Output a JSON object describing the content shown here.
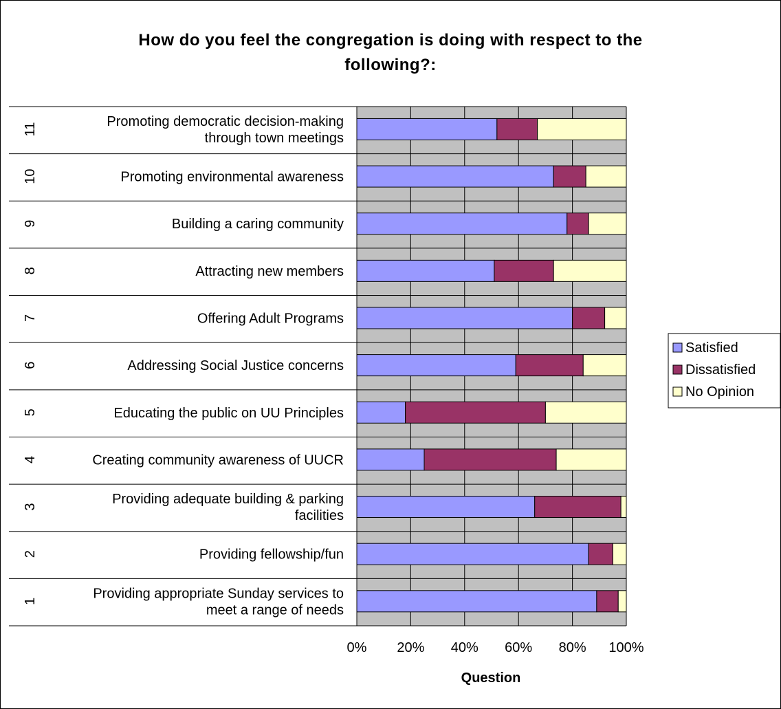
{
  "chart_data": {
    "type": "bar",
    "orientation": "horizontal",
    "stacked": "percent",
    "title": "How do you feel the congregation is doing with respect to the following?:",
    "title_lines": [
      "How do you feel the congregation is doing with respect to the",
      "following?:"
    ],
    "xlabel": "Question",
    "ylabel": "",
    "xlim": [
      0,
      100
    ],
    "x_ticks": [
      "0%",
      "20%",
      "40%",
      "60%",
      "80%",
      "100%"
    ],
    "grid": true,
    "legend_position": "right",
    "categories": [
      {
        "number": "11",
        "label": "Promoting democratic decision-making through town meetings",
        "label_lines": [
          "Promoting democratic decision-making",
          "through town meetings"
        ]
      },
      {
        "number": "10",
        "label": "Promoting environmental awareness",
        "label_lines": [
          "Promoting environmental awareness"
        ]
      },
      {
        "number": "9",
        "label": "Building a caring community",
        "label_lines": [
          "Building a caring community"
        ]
      },
      {
        "number": "8",
        "label": "Attracting new members",
        "label_lines": [
          "Attracting new members"
        ]
      },
      {
        "number": "7",
        "label": "Offering Adult Programs",
        "label_lines": [
          "Offering Adult Programs"
        ]
      },
      {
        "number": "6",
        "label": "Addressing Social Justice concerns",
        "label_lines": [
          "Addressing Social Justice concerns"
        ]
      },
      {
        "number": "5",
        "label": "Educating the public on UU Principles",
        "label_lines": [
          "Educating the public on UU Principles"
        ]
      },
      {
        "number": "4",
        "label": "Creating community awareness of UUCR",
        "label_lines": [
          "Creating community awareness of UUCR"
        ]
      },
      {
        "number": "3",
        "label": "Providing adequate building & parking facilities",
        "label_lines": [
          "Providing adequate building & parking",
          "facilities"
        ]
      },
      {
        "number": "2",
        "label": "Providing fellowship/fun",
        "label_lines": [
          "Providing fellowship/fun"
        ]
      },
      {
        "number": "1",
        "label": "Providing appropriate Sunday services to meet a range of needs",
        "label_lines": [
          "Providing appropriate Sunday services to",
          "meet a range of needs"
        ]
      }
    ],
    "series": [
      {
        "name": "Satisfied",
        "color": "#9999FF",
        "values": [
          52,
          73,
          78,
          51,
          80,
          59,
          18,
          25,
          66,
          86,
          89
        ]
      },
      {
        "name": "Dissatisfied",
        "color": "#993366",
        "values": [
          15,
          12,
          8,
          22,
          12,
          25,
          52,
          49,
          32,
          9,
          8
        ]
      },
      {
        "name": "No Opinion",
        "color": "#FFFFCC",
        "values": [
          33,
          15,
          14,
          27,
          8,
          16,
          30,
          26,
          2,
          5,
          3
        ]
      }
    ],
    "colors": {
      "plot_background": "#C0C0C0",
      "gridline": "#000000",
      "bar_outline": "#000000"
    }
  }
}
